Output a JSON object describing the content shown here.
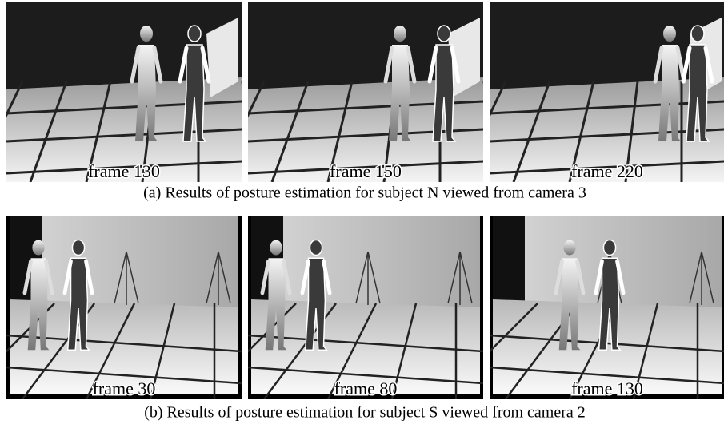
{
  "rows": [
    {
      "caption": "(a) Results of posture estimation for subject N viewed from camera 3",
      "panels": [
        {
          "label": "frame 130"
        },
        {
          "label": "frame 150"
        },
        {
          "label": "frame 220"
        }
      ]
    },
    {
      "caption": "(b) Results of posture estimation for subject S viewed from camera 2",
      "panels": [
        {
          "label": "frame 30"
        },
        {
          "label": "frame 80"
        },
        {
          "label": "frame 130"
        }
      ]
    }
  ]
}
